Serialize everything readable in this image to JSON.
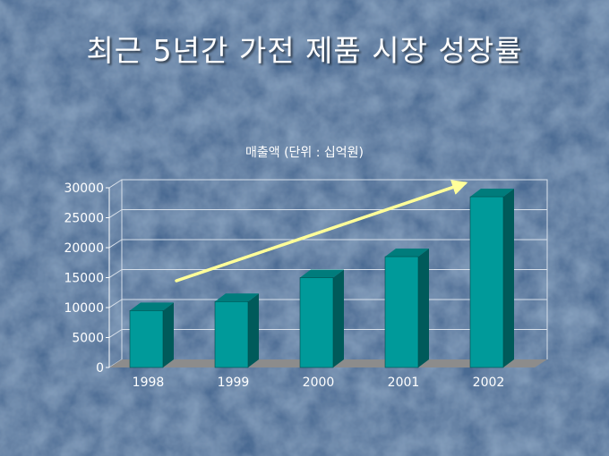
{
  "slide": {
    "title": "최근 5년간 가전 제품 시장 성장률"
  },
  "colors": {
    "background": "#4c6c94",
    "bar_front": "#009a9a",
    "bar_side": "#005a5a",
    "bar_top": "#007c7c",
    "floor": "#8c8c8c",
    "arrow": "#ffff99",
    "text": "#ffffff"
  },
  "chart_data": {
    "type": "bar",
    "title": "매출액 (단위 : 십억원)",
    "xlabel": "",
    "ylabel": "",
    "categories": [
      "1998",
      "1999",
      "2000",
      "2001",
      "2002"
    ],
    "values": [
      9500,
      11000,
      15000,
      18500,
      28500
    ],
    "ylim": [
      0,
      30000
    ],
    "yticks": [
      "0",
      "5000",
      "10000",
      "15000",
      "20000",
      "25000",
      "30000"
    ],
    "grid": true,
    "legend": "none",
    "annotations": [
      {
        "type": "trend-arrow",
        "icon": "up-right-arrow"
      }
    ]
  }
}
